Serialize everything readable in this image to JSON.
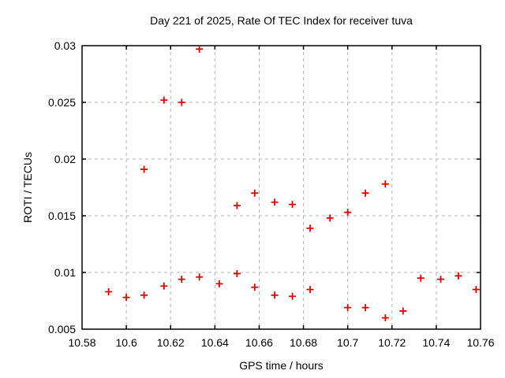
{
  "chart_data": {
    "type": "scatter",
    "title": "Day 221 of 2025, Rate Of TEC Index for receiver tuva",
    "xlabel": "GPS time / hours",
    "ylabel": "ROTI / TECUs",
    "xlim": [
      10.58,
      10.76
    ],
    "ylim": [
      0.005,
      0.03
    ],
    "xticks": [
      10.58,
      10.6,
      10.62,
      10.64,
      10.66,
      10.68,
      10.7,
      10.72,
      10.74,
      10.76
    ],
    "xtick_labels": [
      "10.58",
      "10.6",
      "10.62",
      "10.64",
      "10.66",
      "10.68",
      "10.7",
      "10.72",
      "10.74",
      "10.76"
    ],
    "yticks": [
      0.005,
      0.01,
      0.015,
      0.02,
      0.025,
      0.03
    ],
    "ytick_labels": [
      "0.005",
      "0.01",
      "0.015",
      "0.02",
      "0.025",
      "0.03"
    ],
    "grid": true,
    "legend": "none",
    "marker": {
      "shape": "plus",
      "color": "#e60000",
      "size": 9
    },
    "frame_color": "#000000",
    "grid_color": "#b3b3b3",
    "points": [
      [
        10.592,
        0.0083
      ],
      [
        10.6,
        0.0078
      ],
      [
        10.608,
        0.008
      ],
      [
        10.608,
        0.0191
      ],
      [
        10.617,
        0.0088
      ],
      [
        10.617,
        0.0252
      ],
      [
        10.625,
        0.0094
      ],
      [
        10.625,
        0.025
      ],
      [
        10.633,
        0.0096
      ],
      [
        10.633,
        0.0297
      ],
      [
        10.642,
        0.009
      ],
      [
        10.65,
        0.0099
      ],
      [
        10.65,
        0.0159
      ],
      [
        10.658,
        0.0087
      ],
      [
        10.658,
        0.017
      ],
      [
        10.667,
        0.008
      ],
      [
        10.667,
        0.0162
      ],
      [
        10.675,
        0.0079
      ],
      [
        10.675,
        0.016
      ],
      [
        10.683,
        0.0085
      ],
      [
        10.683,
        0.0139
      ],
      [
        10.692,
        0.0148
      ],
      [
        10.7,
        0.0069
      ],
      [
        10.7,
        0.0153
      ],
      [
        10.708,
        0.0069
      ],
      [
        10.708,
        0.017
      ],
      [
        10.717,
        0.006
      ],
      [
        10.717,
        0.0178
      ],
      [
        10.725,
        0.0066
      ],
      [
        10.733,
        0.0095
      ],
      [
        10.742,
        0.0094
      ],
      [
        10.75,
        0.0097
      ],
      [
        10.758,
        0.0085
      ]
    ]
  }
}
